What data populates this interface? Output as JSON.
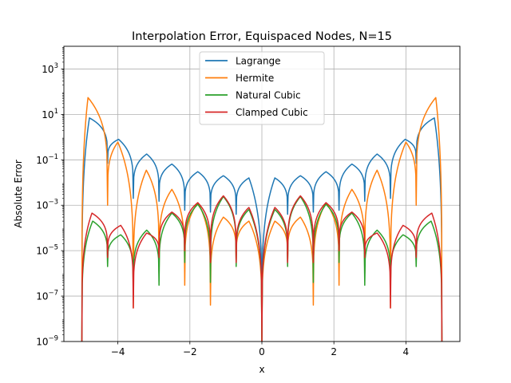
{
  "chart_data": {
    "type": "line",
    "title": "Interpolation Error, Equispaced Nodes, N=15",
    "xlabel": "x",
    "ylabel": "Absolute Error",
    "xlim": [
      -5.5,
      5.5
    ],
    "ylim": [
      1e-09,
      10000
    ],
    "yscale": "log",
    "grid": true,
    "legend_position": "top-center",
    "x_ticks": [
      {
        "value": -4,
        "label": "−4"
      },
      {
        "value": -2,
        "label": "−2"
      },
      {
        "value": 0,
        "label": "0"
      },
      {
        "value": 2,
        "label": "2"
      },
      {
        "value": 4,
        "label": "4"
      }
    ],
    "y_ticks": [
      {
        "exp": -9,
        "base": "10",
        "sup": "−9"
      },
      {
        "exp": -7,
        "base": "10",
        "sup": "−7"
      },
      {
        "exp": -5,
        "base": "10",
        "sup": "−5"
      },
      {
        "exp": -3,
        "base": "10",
        "sup": "−3"
      },
      {
        "exp": -1,
        "base": "10",
        "sup": "−1"
      },
      {
        "exp": 1,
        "base": "10",
        "sup": "1"
      },
      {
        "exp": 3,
        "base": "10",
        "sup": "3"
      }
    ],
    "nodes": [
      -5,
      -4.2857,
      -3.5714,
      -2.8571,
      -2.1429,
      -1.4286,
      -0.7143,
      0,
      0.7143,
      1.4286,
      2.1429,
      2.8571,
      3.5714,
      4.2857,
      5
    ],
    "series": [
      {
        "name": "Lagrange",
        "color": "#1f77b4",
        "node_error": 1e-09,
        "x_peaks": [
          -4.79,
          -3.98,
          -3.2,
          -2.5,
          -1.78,
          -1.07,
          -0.36,
          0.36,
          1.07,
          1.78,
          2.5,
          3.2,
          3.98,
          4.79
        ],
        "peak_values": [
          7,
          0.8,
          0.18,
          0.065,
          0.03,
          0.02,
          0.016,
          0.016,
          0.02,
          0.03,
          0.065,
          0.18,
          0.8,
          7
        ],
        "node_dip_values": [
          1e-09,
          0.07,
          0.002,
          0.0015,
          0.0006,
          0.0005,
          0.0004,
          1e-09,
          0.0004,
          0.0005,
          0.0006,
          0.0015,
          0.002,
          0.07,
          1e-09
        ]
      },
      {
        "name": "Hermite",
        "color": "#ff7f0e",
        "node_error": 1e-09,
        "x_peaks": [
          -4.83,
          -4.0,
          -3.21,
          -2.5,
          -1.78,
          -1.07,
          -0.36,
          0.36,
          1.07,
          1.78,
          2.5,
          3.2,
          4.0,
          4.83
        ],
        "peak_values": [
          55,
          0.6,
          0.035,
          0.005,
          0.0013,
          0.0003,
          0.0002,
          0.0002,
          0.0003,
          0.0013,
          0.005,
          0.035,
          0.6,
          55
        ],
        "node_dip_values": [
          1e-09,
          0.001,
          3e-08,
          1e-06,
          3e-07,
          4e-08,
          3e-06,
          1e-09,
          3e-06,
          4e-08,
          3e-07,
          1e-06,
          3e-08,
          0.001,
          1e-09
        ]
      },
      {
        "name": "Natural Cubic",
        "color": "#2ca02c",
        "node_error": 1e-09,
        "x_peaks": [
          -4.7,
          -3.92,
          -3.2,
          -2.5,
          -1.78,
          -1.07,
          -0.36,
          0.36,
          1.07,
          1.78,
          2.5,
          3.2,
          3.92,
          4.7
        ],
        "peak_values": [
          0.0002,
          5e-05,
          8e-05,
          0.00045,
          0.0011,
          0.0024,
          0.00065,
          0.00065,
          0.0024,
          0.0011,
          0.00045,
          8e-05,
          5e-05,
          0.0002
        ],
        "node_dip_values": [
          1e-09,
          2e-06,
          2e-07,
          3e-07,
          3e-06,
          4e-07,
          2e-06,
          1e-09,
          2e-06,
          4e-07,
          3e-06,
          3e-07,
          2e-07,
          2e-06,
          1e-09
        ]
      },
      {
        "name": "Clamped Cubic",
        "color": "#d62728",
        "node_error": 1e-09,
        "x_peaks": [
          -4.72,
          -3.92,
          -3.2,
          -2.5,
          -1.78,
          -1.07,
          -0.36,
          0.36,
          1.07,
          1.78,
          2.5,
          3.2,
          3.92,
          4.72
        ],
        "peak_values": [
          0.00045,
          0.00013,
          6e-05,
          0.0005,
          0.0013,
          0.0026,
          0.0008,
          0.0008,
          0.0026,
          0.0013,
          0.0005,
          6e-05,
          0.00013,
          0.00045
        ],
        "node_dip_values": [
          1e-09,
          5e-06,
          3e-08,
          5e-06,
          1e-05,
          3e-06,
          3e-06,
          1e-09,
          3e-06,
          3e-06,
          1e-05,
          5e-06,
          3e-08,
          5e-06,
          1e-09
        ]
      }
    ]
  }
}
